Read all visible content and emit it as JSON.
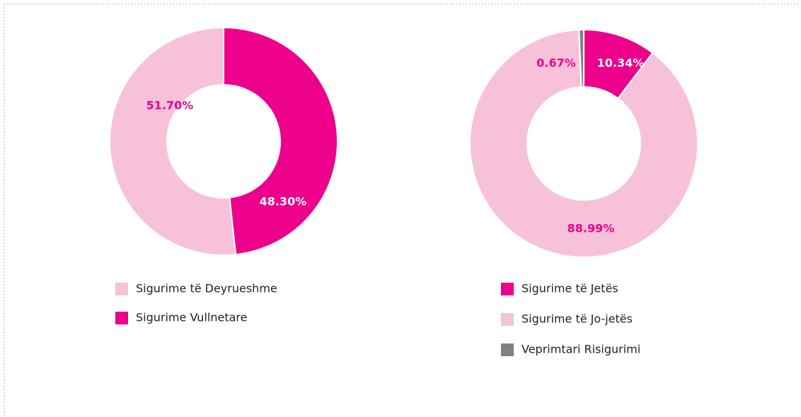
{
  "chart_data": [
    {
      "type": "pie",
      "categories": [
        "Sigurime të Deyrueshme",
        "Sigurime Vullnetare"
      ],
      "values": [
        51.7,
        48.3
      ],
      "value_labels": [
        "51.70%",
        "48.30%"
      ],
      "colors": [
        "#f7c1d9",
        "#ec008c"
      ]
    },
    {
      "type": "pie",
      "categories": [
        "Sigurime të Jetës",
        "Sigurime të Jo-jetës",
        "Veprimtari Risigurimi"
      ],
      "values": [
        10.34,
        88.99,
        0.67
      ],
      "value_labels": [
        "10.34%",
        "88.99%",
        "0.67%"
      ],
      "colors": [
        "#ec008c",
        "#f7c1d9",
        "#808285"
      ]
    }
  ]
}
